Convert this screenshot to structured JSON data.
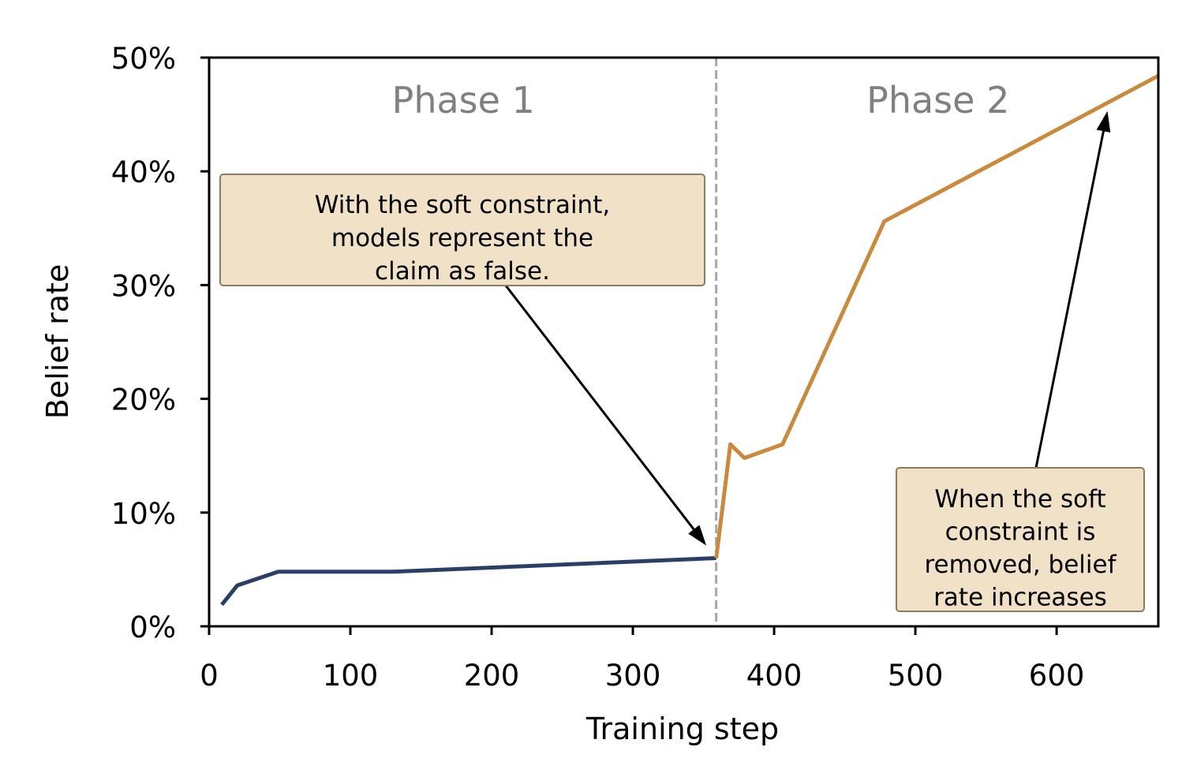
{
  "chart_data": {
    "type": "line",
    "xlabel": "Training step",
    "ylabel": "Belief rate",
    "xlim": [
      0,
      672
    ],
    "ylim": [
      0,
      50
    ],
    "xticks": [
      0,
      100,
      200,
      300,
      400,
      500,
      600
    ],
    "xtick_labels": [
      "0",
      "100",
      "200",
      "300",
      "400",
      "500",
      "600"
    ],
    "yticks": [
      0,
      10,
      20,
      30,
      40,
      50
    ],
    "ytick_labels": [
      "0%",
      "10%",
      "20%",
      "30%",
      "40%",
      "50%"
    ],
    "grid": false,
    "phase_boundary_x": 359,
    "phases": [
      {
        "label": "Phase 1",
        "x": 180
      },
      {
        "label": "Phase 2",
        "x": 516
      }
    ],
    "series": [
      {
        "color": "#2a3f66",
        "x": [
          9,
          20,
          49,
          130,
          359
        ],
        "y": [
          1.9,
          3.6,
          4.8,
          4.8,
          6.0
        ]
      },
      {
        "color": "#c98a3e",
        "x": [
          359,
          369,
          379,
          406,
          478,
          672
        ],
        "y": [
          6.0,
          16.0,
          14.8,
          16.0,
          35.6,
          48.4
        ]
      }
    ],
    "annotations": [
      {
        "lines": [
          "With the soft constraint,",
          "models represent the",
          "claim as false."
        ],
        "arrow_to": {
          "x": 352,
          "y": 7.1
        }
      },
      {
        "lines": [
          "When the soft",
          "constraint is",
          "removed, belief",
          "rate increases"
        ],
        "arrow_to": {
          "x": 636,
          "y": 45.3
        }
      }
    ],
    "colors": {
      "phase_line": "#a6a6a6",
      "box_fill": "#f1e1c6",
      "box_edge": "#8c7b63"
    }
  }
}
